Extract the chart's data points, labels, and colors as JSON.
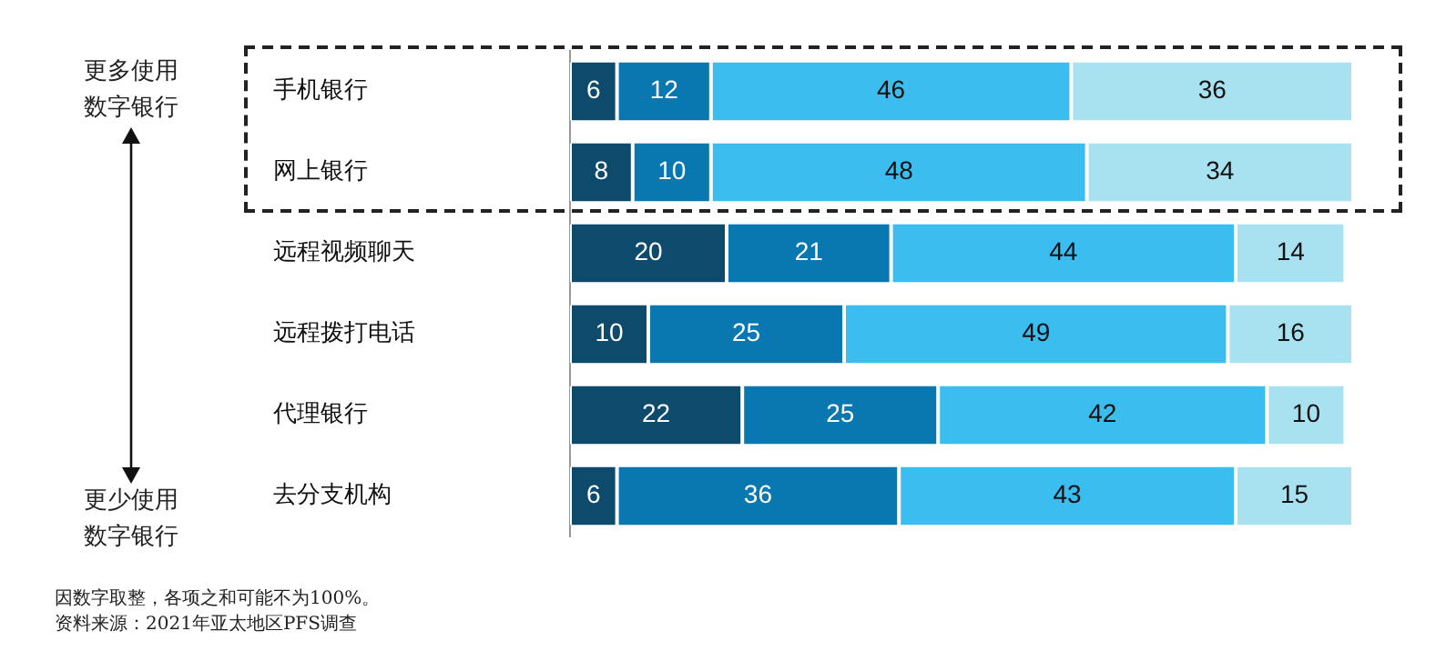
{
  "chart_data": {
    "type": "bar",
    "orientation": "horizontal",
    "stacked": true,
    "data_labels": true,
    "tick_labels": "y",
    "legend": false,
    "grid": false,
    "xlim": [
      0,
      100
    ],
    "categories": [
      "手机银行",
      "网上银行",
      "远程视频聊天",
      "远程拨打电话",
      "代理银行",
      "去分支机构"
    ],
    "series": [
      {
        "color": "#0d4a6b",
        "values": [
          6,
          8,
          20,
          10,
          22,
          6
        ]
      },
      {
        "color": "#0a78b0",
        "values": [
          12,
          10,
          21,
          25,
          25,
          36
        ]
      },
      {
        "color": "#3bbdf0",
        "values": [
          46,
          48,
          44,
          49,
          42,
          43
        ]
      },
      {
        "color": "#a8e2f0",
        "values": [
          36,
          34,
          14,
          16,
          10,
          15
        ]
      }
    ],
    "annotations": [
      "更多使用数字银行",
      "更少使用数字银行",
      "因数字取整，各项之和可能不为100%。",
      "资料来源：2021年亚太地区PFS调查"
    ]
  }
}
